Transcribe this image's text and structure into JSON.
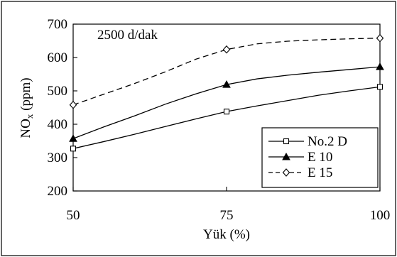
{
  "chart_data": {
    "type": "line",
    "title": "",
    "annotation": "2500 d/dak",
    "xlabel": "Yük (%)",
    "ylabel_main": "NO",
    "ylabel_sub": "x",
    "ylabel_unit": " (ppm)",
    "xlim": [
      50,
      100
    ],
    "ylim": [
      200,
      700
    ],
    "x_ticks": [
      50,
      75,
      100
    ],
    "y_ticks": [
      200,
      300,
      400,
      500,
      600,
      700
    ],
    "grid": false,
    "legend_position": "bottom-right",
    "series": [
      {
        "name": "No.2 D",
        "line_style": "solid",
        "marker": "square",
        "color": "#000000",
        "curve": [
          [
            50,
            327
          ],
          [
            55,
            348
          ],
          [
            60,
            370
          ],
          [
            65,
            393
          ],
          [
            70,
            416
          ],
          [
            75,
            438
          ],
          [
            80,
            455
          ],
          [
            85,
            471
          ],
          [
            90,
            487
          ],
          [
            95,
            500
          ],
          [
            100,
            512
          ]
        ],
        "markers": [
          [
            50,
            327
          ],
          [
            75,
            438
          ],
          [
            100,
            512
          ]
        ]
      },
      {
        "name": "E 10",
        "line_style": "solid",
        "marker": "triangle",
        "color": "#000000",
        "curve": [
          [
            50,
            357
          ],
          [
            55,
            392
          ],
          [
            60,
            425
          ],
          [
            65,
            460
          ],
          [
            70,
            491
          ],
          [
            75,
            519
          ],
          [
            80,
            536
          ],
          [
            85,
            547
          ],
          [
            90,
            556
          ],
          [
            95,
            564
          ],
          [
            100,
            572
          ]
        ],
        "markers": [
          [
            50,
            357
          ],
          [
            75,
            519
          ],
          [
            100,
            572
          ]
        ]
      },
      {
        "name": "E 15",
        "line_style": "dashed",
        "marker": "diamond",
        "color": "#000000",
        "curve": [
          [
            50,
            458
          ],
          [
            55,
            490
          ],
          [
            60,
            522
          ],
          [
            65,
            557
          ],
          [
            70,
            595
          ],
          [
            75,
            624
          ],
          [
            80,
            641
          ],
          [
            85,
            649
          ],
          [
            90,
            653
          ],
          [
            95,
            656
          ],
          [
            100,
            658
          ]
        ],
        "markers": [
          [
            50,
            458
          ],
          [
            75,
            624
          ],
          [
            100,
            658
          ]
        ]
      }
    ]
  }
}
